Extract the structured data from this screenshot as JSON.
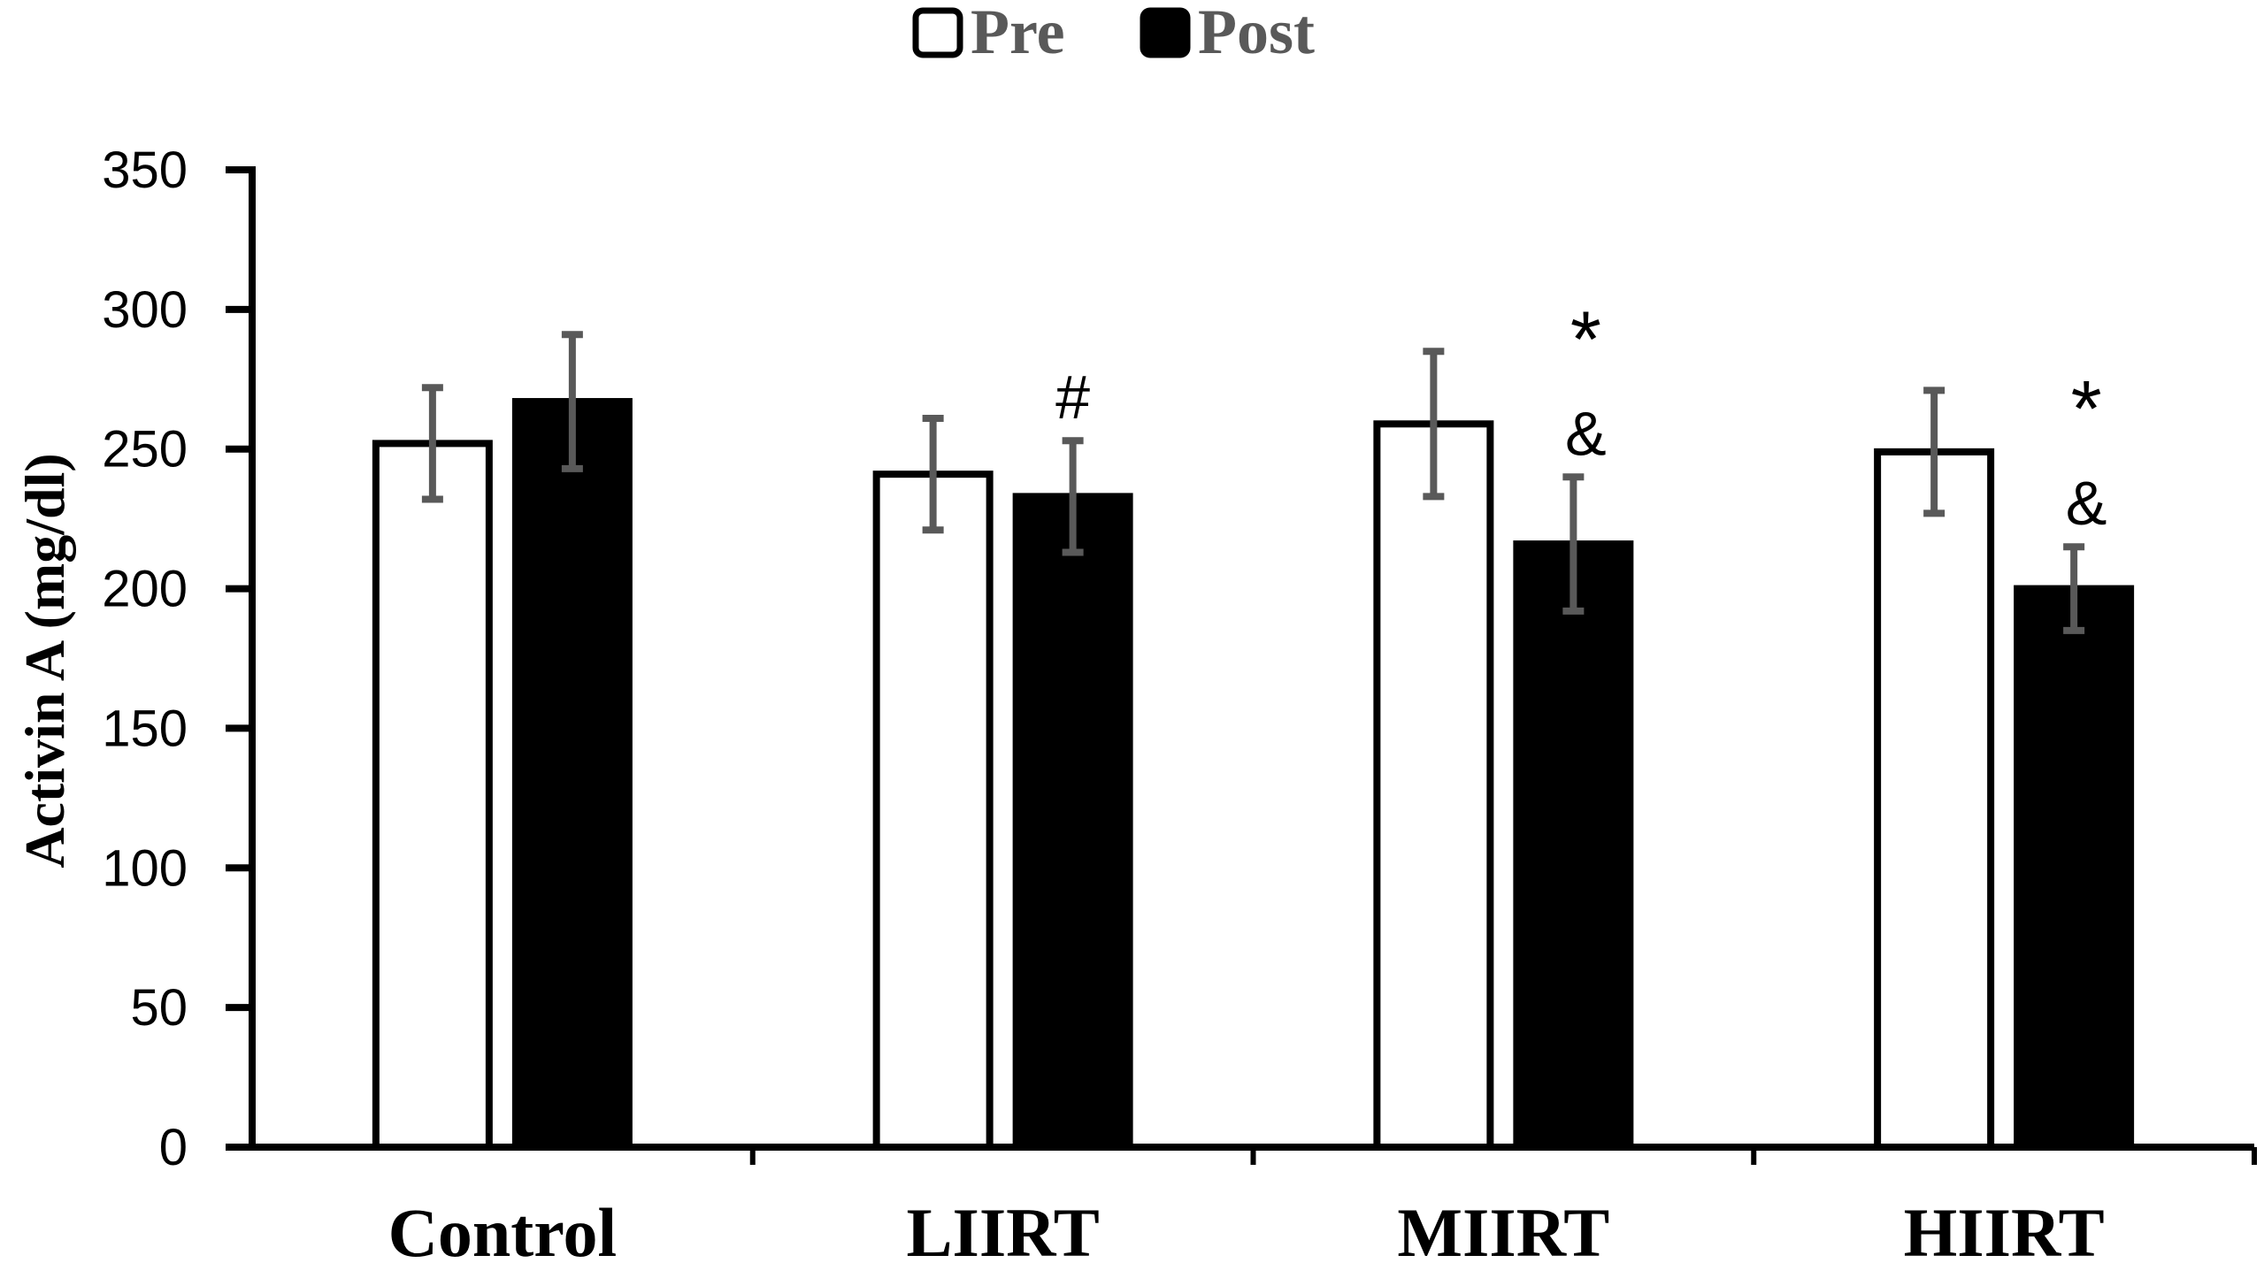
{
  "chart_data": {
    "type": "bar",
    "title": "",
    "xlabel": "",
    "ylabel": "Activin A (mg/dl)",
    "ylim": [
      0,
      350
    ],
    "yticks": [
      "0",
      "50",
      "100",
      "150",
      "200",
      "250",
      "300",
      "350"
    ],
    "categories": [
      "Control",
      "LIIRT",
      "MIIRT",
      "HIIRT"
    ],
    "series": [
      {
        "name": "Pre",
        "fill": "#ffffff",
        "values": [
          252,
          241,
          259,
          249
        ],
        "errors": [
          20,
          20,
          26,
          22
        ]
      },
      {
        "name": "Post",
        "fill": "#000000",
        "values": [
          267,
          233,
          216,
          200
        ],
        "errors": [
          24,
          20,
          24,
          15
        ]
      }
    ],
    "legend_position": "top-center",
    "grid": false,
    "annotations": [
      {
        "category": "LIIRT",
        "series": "Post",
        "lines": [
          "#"
        ]
      },
      {
        "category": "MIIRT",
        "series": "Post",
        "lines": [
          "*",
          "&"
        ]
      },
      {
        "category": "HIIRT",
        "series": "Post",
        "lines": [
          "*",
          "&"
        ]
      }
    ],
    "colors": {
      "axis": "#000000",
      "error_bar": "#595959",
      "ylabel": "#808080",
      "legend_text": "#595959"
    }
  }
}
